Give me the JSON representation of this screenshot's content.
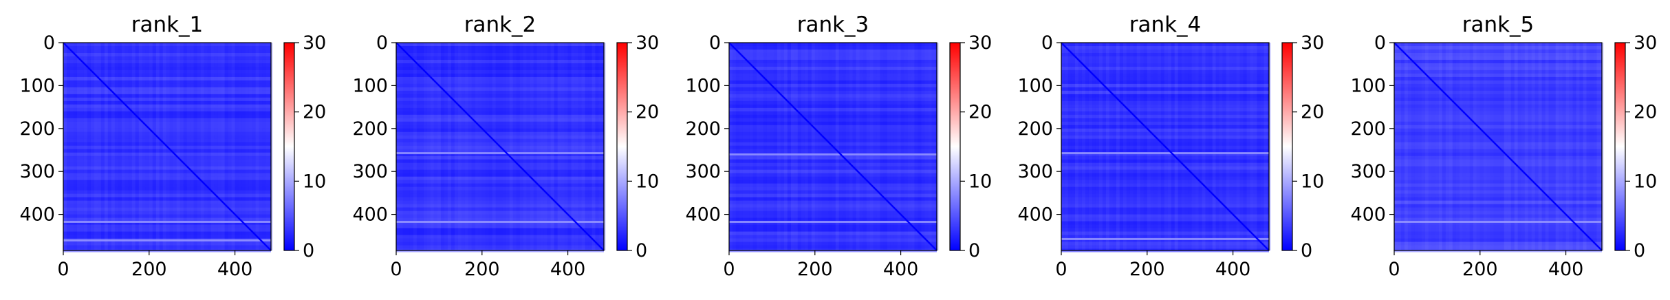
{
  "chart_data": [
    {
      "type": "heatmap",
      "title": "rank_1",
      "size": 484,
      "pattern_seed": 1,
      "xticks": [
        0,
        200,
        400
      ],
      "yticks": [
        0,
        100,
        200,
        300,
        400
      ],
      "xlim": [
        0,
        484
      ],
      "ylim": [
        484,
        0
      ],
      "colorbar": {
        "ticks": [
          0,
          10,
          20,
          30
        ],
        "range": [
          0,
          30
        ],
        "colormap": "bwr"
      },
      "value_level": 3,
      "diagonal": 0,
      "bright_row_bands": [
        415,
        458
      ],
      "bright_col_bands": []
    },
    {
      "type": "heatmap",
      "title": "rank_2",
      "size": 484,
      "pattern_seed": 2,
      "xticks": [
        0,
        200,
        400
      ],
      "yticks": [
        0,
        100,
        200,
        300,
        400
      ],
      "xlim": [
        0,
        484
      ],
      "ylim": [
        484,
        0
      ],
      "colorbar": {
        "ticks": [
          0,
          10,
          20,
          30
        ],
        "range": [
          0,
          30
        ],
        "colormap": "bwr"
      },
      "value_level": 3,
      "diagonal": 0,
      "bright_row_bands": [
        255,
        415
      ],
      "bright_col_bands": []
    },
    {
      "type": "heatmap",
      "title": "rank_3",
      "size": 484,
      "pattern_seed": 3,
      "xticks": [
        0,
        200,
        400
      ],
      "yticks": [
        0,
        100,
        200,
        300,
        400
      ],
      "xlim": [
        0,
        484
      ],
      "ylim": [
        484,
        0
      ],
      "colorbar": {
        "ticks": [
          0,
          10,
          20,
          30
        ],
        "range": [
          0,
          30
        ],
        "colormap": "bwr"
      },
      "value_level": 3,
      "diagonal": 0,
      "bright_row_bands": [
        258,
        415
      ],
      "bright_col_bands": []
    },
    {
      "type": "heatmap",
      "title": "rank_4",
      "size": 484,
      "pattern_seed": 4,
      "xticks": [
        0,
        200,
        400
      ],
      "yticks": [
        0,
        100,
        200,
        300,
        400
      ],
      "xlim": [
        0,
        484
      ],
      "ylim": [
        484,
        0
      ],
      "colorbar": {
        "ticks": [
          0,
          10,
          20,
          30
        ],
        "range": [
          0,
          30
        ],
        "colormap": "bwr"
      },
      "value_level": 3,
      "diagonal": 0,
      "bright_row_bands": [
        255,
        455
      ],
      "bright_col_bands": []
    },
    {
      "type": "heatmap",
      "title": "rank_5",
      "size": 484,
      "pattern_seed": 5,
      "xticks": [
        0,
        200,
        400
      ],
      "yticks": [
        0,
        100,
        200,
        300,
        400
      ],
      "xlim": [
        0,
        484
      ],
      "ylim": [
        484,
        0
      ],
      "colorbar": {
        "ticks": [
          0,
          10,
          20,
          30
        ],
        "range": [
          0,
          30
        ],
        "colormap": "bwr"
      },
      "value_level": 4,
      "diagonal": 0,
      "bright_row_bands": [
        415
      ],
      "bright_col_bands": []
    }
  ]
}
